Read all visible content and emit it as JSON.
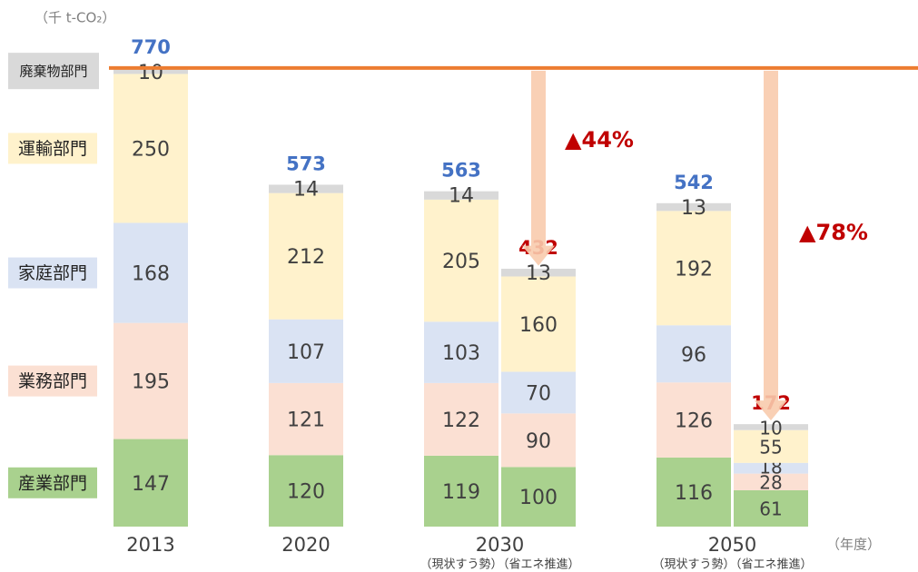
{
  "chart_data": {
    "type": "stacked-bar",
    "unit_label": "（千 t-CO₂）",
    "x_unit_label": "（年度）",
    "groups": [
      {
        "label": "2013"
      },
      {
        "label": "2020"
      },
      {
        "label": "2030",
        "sublabels": [
          "（現状すう勢）",
          "（省エネ推進）"
        ]
      },
      {
        "label": "2050",
        "sublabels": [
          "（現状すう勢）",
          "（省エネ推進）"
        ]
      }
    ],
    "series": [
      {
        "name": "産業部門",
        "color": "#a9d18e",
        "values": [
          147,
          120,
          119,
          100,
          116,
          61
        ]
      },
      {
        "name": "業務部門",
        "color": "#fbe0d3",
        "values": [
          195,
          121,
          122,
          90,
          126,
          28
        ]
      },
      {
        "name": "家庭部門",
        "color": "#dae3f3",
        "values": [
          168,
          107,
          103,
          70,
          96,
          18
        ]
      },
      {
        "name": "運輸部門",
        "color": "#fff2cc",
        "values": [
          250,
          212,
          205,
          160,
          192,
          55
        ]
      },
      {
        "name": "廃棄物部門",
        "color": "#d9d9d9",
        "values": [
          10,
          14,
          14,
          13,
          13,
          10
        ]
      }
    ],
    "totals": [
      770,
      573,
      563,
      432,
      542,
      172
    ],
    "total_colors": [
      "#4472c4",
      "#4472c4",
      "#4472c4",
      "#c00000",
      "#4472c4",
      "#c00000"
    ],
    "reference_color": "#ed7d31",
    "annotations": [
      "▲44%",
      "▲78%"
    ],
    "annotation_color": "#c00000"
  }
}
